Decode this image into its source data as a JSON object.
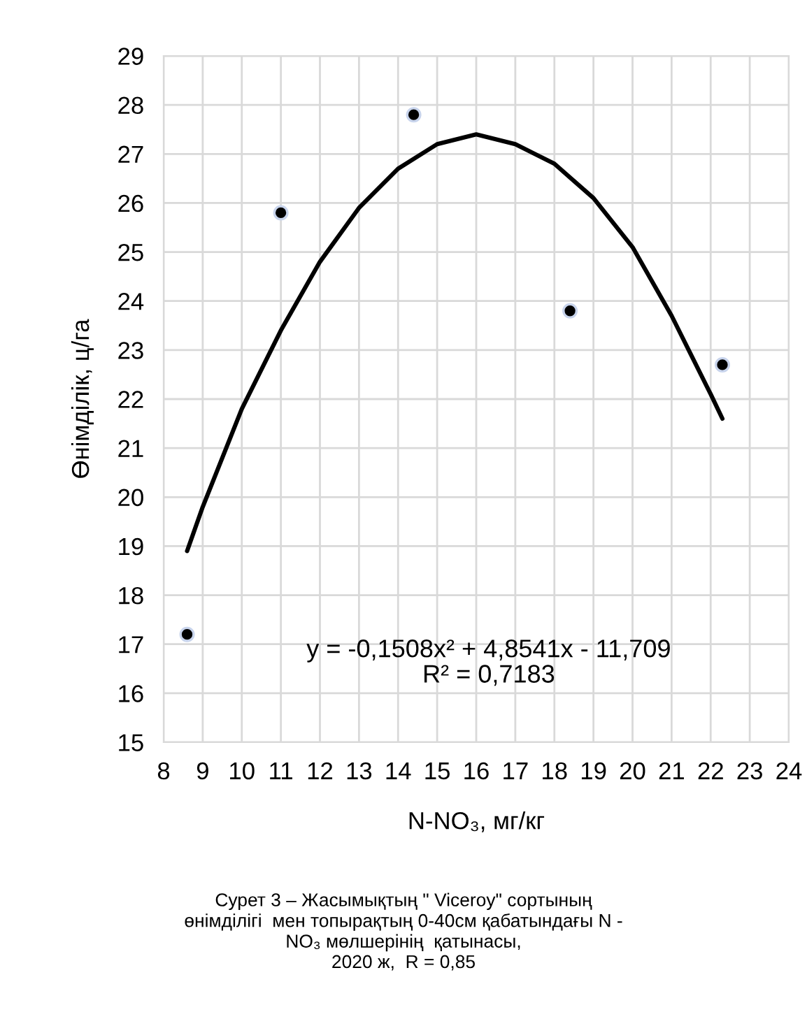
{
  "chart_data": {
    "type": "scatter",
    "xlabel": "N-NO₃, мг/кг",
    "ylabel": "Өнімділік, ц/га",
    "xlim": [
      8,
      24
    ],
    "xticks": [
      8,
      9,
      10,
      11,
      12,
      13,
      14,
      15,
      16,
      17,
      18,
      19,
      20,
      21,
      22,
      23,
      24
    ],
    "ylim": [
      15,
      29
    ],
    "yticks": [
      15,
      16,
      17,
      18,
      19,
      20,
      21,
      22,
      23,
      24,
      25,
      26,
      27,
      28,
      29
    ],
    "grid": true,
    "series": [
      {
        "marker": "circle",
        "color": "#000000",
        "x": [
          8.6,
          11.0,
          14.4,
          18.4,
          22.3
        ],
        "values": [
          17.2,
          25.8,
          27.8,
          23.8,
          22.7
        ]
      },
      {
        "type": "line",
        "color": "#000000",
        "line_style": "solid",
        "marker": "none",
        "x": [
          8.6,
          9,
          10,
          11,
          12,
          13,
          14,
          15,
          16,
          17,
          18,
          19,
          20,
          21,
          22,
          22.3
        ],
        "values": [
          18.9,
          19.8,
          21.8,
          23.4,
          24.8,
          25.9,
          26.7,
          27.2,
          27.4,
          27.2,
          26.8,
          26.1,
          25.1,
          23.7,
          22.1,
          21.6
        ]
      }
    ],
    "annotations": [
      "y = -0,1508x² + 4,8541x - 11,709\nR² = 0,7183",
      "Сурет 3 – Жасымықтың \" Viceroy\" сортының\nөнімділігі  мен топырақтың 0-40см қабатындағы N -\nNO₃ мөлшерінің  қатынасы,\n2020 ж,  R = 0,85"
    ]
  }
}
